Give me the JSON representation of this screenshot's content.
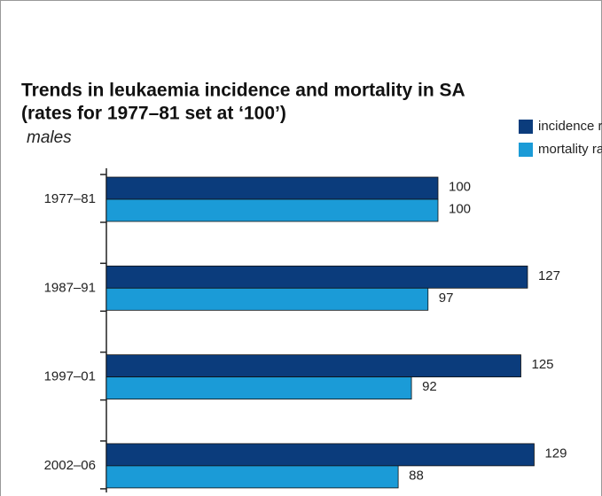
{
  "chart_data": {
    "type": "hbar",
    "title": "Trends in leukaemia incidence and mortality in SA",
    "subtitle": "(rates for 1977–81 set at ‘100’)",
    "panel_label": "males",
    "categories": [
      "1977–81",
      "1987–91",
      "1997–01",
      "2002–06"
    ],
    "series": [
      {
        "name": "incidence rates",
        "color": "#0b3c7c",
        "values": [
          100,
          127,
          125,
          129
        ]
      },
      {
        "name": "mortality rates",
        "color": "#1b9bd7",
        "values": [
          100,
          97,
          92,
          88
        ]
      }
    ],
    "legend": "top-right"
  }
}
